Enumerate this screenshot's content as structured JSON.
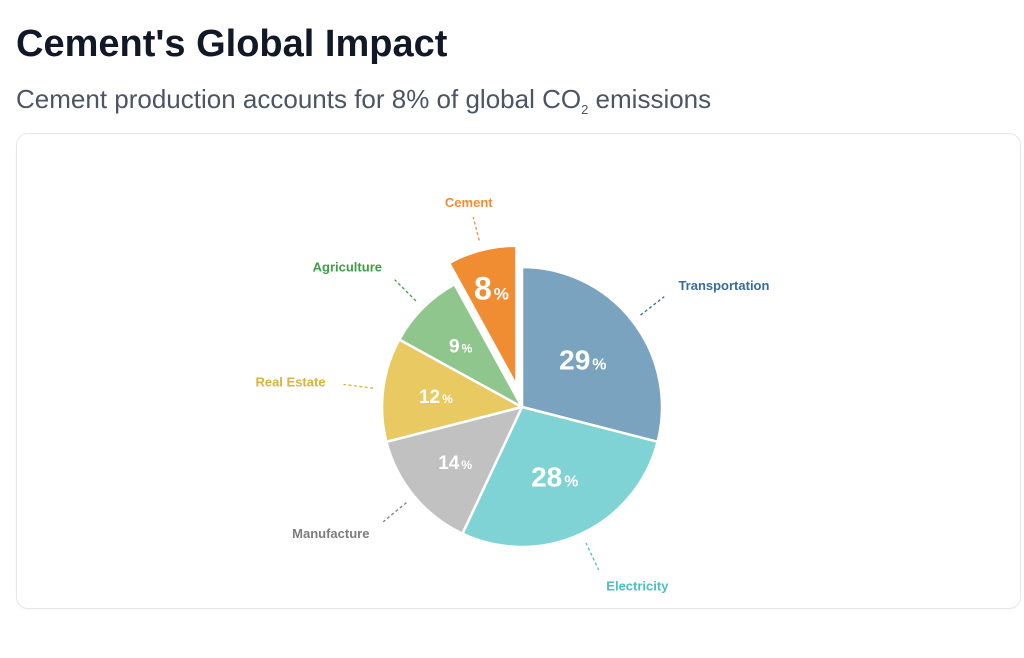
{
  "page": {
    "title": "Cement's Global Impact",
    "subtitle_main": "Cement production accounts for 8% of global CO",
    "subtitle_sub": "2",
    "subtitle_end": " emissions"
  },
  "chart_data": {
    "type": "pie",
    "title": "",
    "unit": "%",
    "categories": [
      "Cement",
      "Transportation",
      "Electricity",
      "Manufacture",
      "Real Estate",
      "Agriculture"
    ],
    "values": [
      8,
      29,
      28,
      14,
      12,
      9
    ],
    "colors": [
      "#f08d32",
      "#7aa3c0",
      "#80d3d5",
      "#c1c1c1",
      "#e8c962",
      "#8fc68d"
    ],
    "label_colors": [
      "#f08d32",
      "#386c9b",
      "#4bbfc3",
      "#7d7d7d",
      "#d9b43d",
      "#3f9e45"
    ],
    "exploded": [
      "Cement"
    ]
  }
}
